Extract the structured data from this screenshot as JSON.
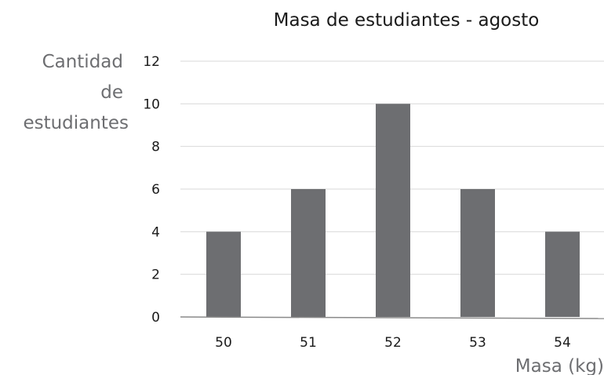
{
  "chart_data": {
    "type": "bar",
    "title": "Masa de estudiantes - agosto",
    "ylabel_lines": [
      "Cantidad",
      "de",
      "estudiantes"
    ],
    "xlabel": "Masa (kg)",
    "categories": [
      "50",
      "51",
      "52",
      "53",
      "54"
    ],
    "values": [
      4,
      6,
      10,
      6,
      4
    ],
    "ylim": [
      0,
      12
    ],
    "yticks": [
      0,
      2,
      4,
      6,
      8,
      10,
      12
    ],
    "grid": true,
    "bar_color": "#6d6e71",
    "legend": "none"
  }
}
